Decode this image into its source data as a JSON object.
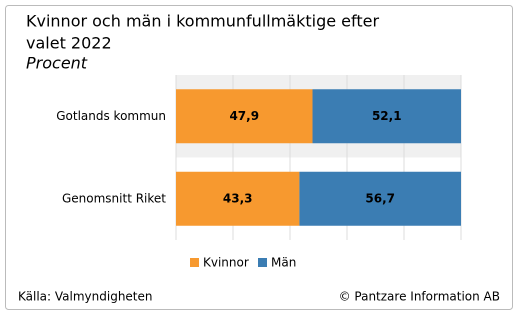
{
  "chart_data": {
    "type": "stacked-bar-horizontal",
    "title_lines": [
      "Kvinnor och män i kommunfullmäktige efter",
      "valet 2022"
    ],
    "subtitle": "Procent",
    "categories": [
      "Gotlands kommun",
      "Genomsnitt Riket"
    ],
    "series": [
      {
        "name": "Kvinnor",
        "color": "#f7992f",
        "values": [
          47.9,
          43.3
        ],
        "value_labels": [
          "47,9",
          "43,3"
        ]
      },
      {
        "name": "Män",
        "color": "#3b7db3",
        "values": [
          52.1,
          56.7
        ],
        "value_labels": [
          "52,1",
          "56,7"
        ]
      }
    ],
    "xlim": [
      0,
      100
    ],
    "xticks": [
      0,
      20,
      40,
      60,
      80,
      100
    ],
    "grid": true,
    "legend": "bottom",
    "source": "Källa: Valmyndigheten",
    "credit": "© Pantzare Information AB"
  }
}
